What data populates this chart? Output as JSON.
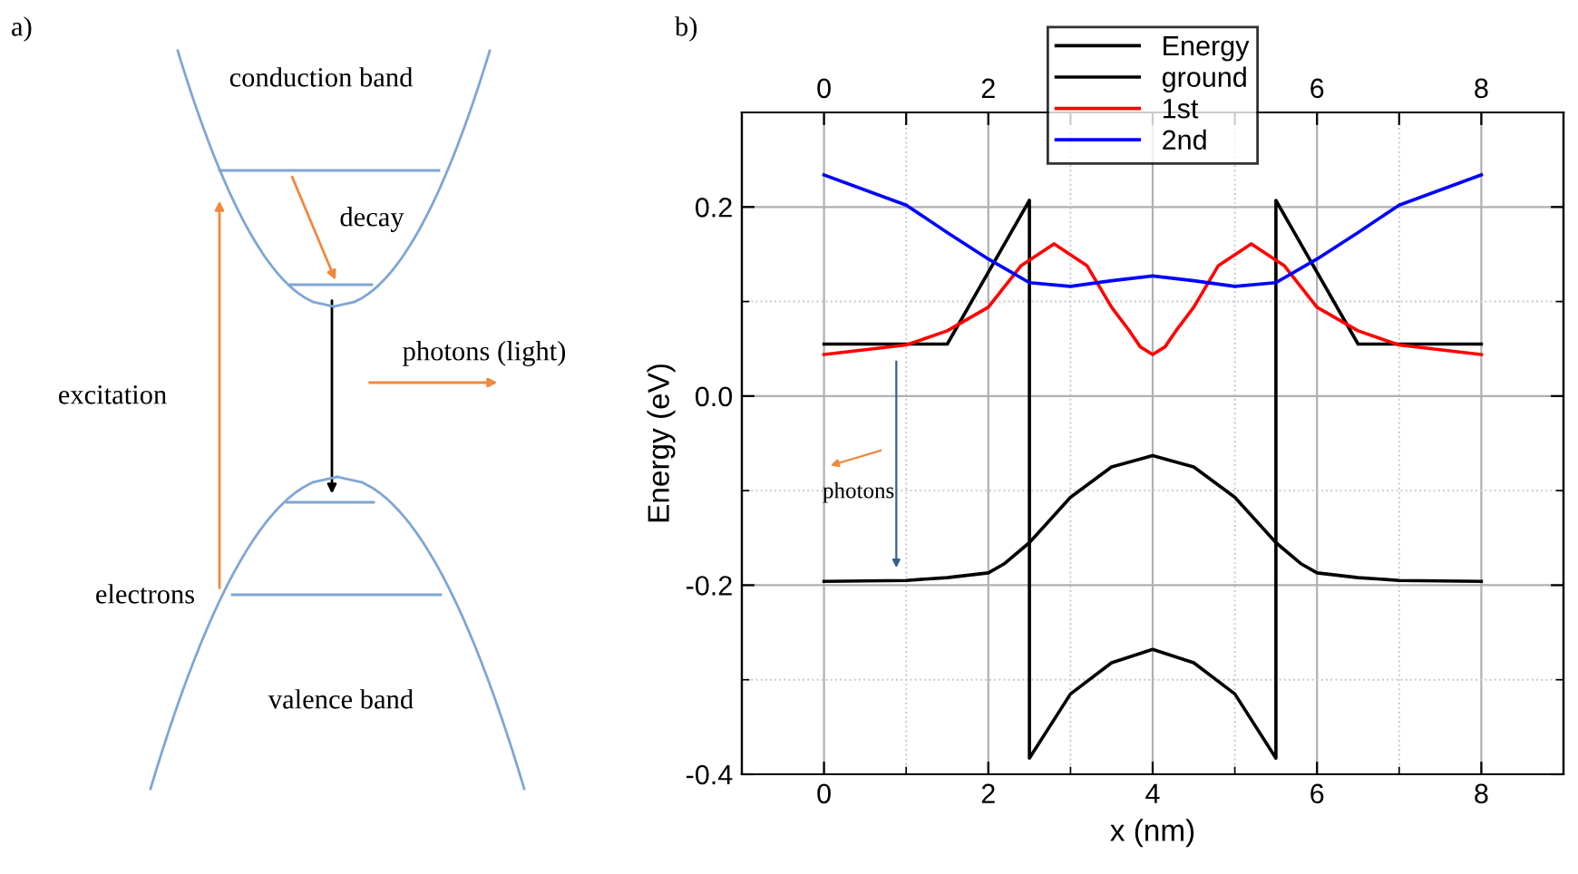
{
  "chart_data": [
    {
      "type": "other",
      "title": "a)",
      "annotations": [
        "conduction band",
        "decay",
        "photons (light)",
        "excitation",
        "electrons",
        "valence band"
      ]
    },
    {
      "type": "line",
      "title": "b)",
      "xlabel": "x (nm)",
      "ylabel": "Energy (eV)",
      "xlim": [
        -1,
        9
      ],
      "ylim": [
        -0.4,
        0.3
      ],
      "xticks": [
        0,
        {
          "value": 1,
          "label": null
        },
        2,
        {
          "value": 3,
          "label": null
        },
        4,
        {
          "value": 5,
          "label": null
        },
        6,
        {
          "value": 7,
          "label": null
        },
        8
      ],
      "yticks": [
        {
          "value": -0.4,
          "label": "-0.4"
        },
        {
          "value": -0.3,
          "label": null
        },
        {
          "value": -0.2,
          "label": "-0.2"
        },
        {
          "value": -0.1,
          "label": null
        },
        {
          "value": 0.0,
          "label": "0.0"
        },
        {
          "value": 0.1,
          "label": null
        },
        {
          "value": 0.2,
          "label": "0.2"
        }
      ],
      "x2lim": [
        -1,
        9
      ],
      "x2ticks": [
        0,
        {
          "value": 1,
          "label": null
        },
        2,
        {
          "value": 3,
          "label": null
        },
        {
          "value": 4,
          "label": null
        },
        {
          "value": 5,
          "label": null
        },
        6,
        {
          "value": 7,
          "label": null
        },
        8
      ],
      "grid": true,
      "legend": "top",
      "line_style": "solid",
      "marker": "none",
      "annotations": [
        "photons"
      ],
      "series": [
        {
          "name": "Energy",
          "color": "#000000",
          "x": [
            0,
            1.5,
            2.5,
            2.5,
            3,
            3.5,
            4,
            4.5,
            5,
            5.5,
            5.5,
            6.5,
            8
          ],
          "values": [
            0.055,
            0.055,
            0.207,
            -0.383,
            -0.315,
            -0.282,
            -0.268,
            -0.282,
            -0.315,
            -0.383,
            0.207,
            0.055,
            0.055
          ]
        },
        {
          "name": "ground",
          "color": "#000000",
          "x": [
            0,
            1,
            1.5,
            2,
            2.2,
            2.5,
            3,
            3.5,
            4,
            4.5,
            5,
            5.5,
            5.8,
            6,
            6.5,
            7,
            8
          ],
          "values": [
            -0.196,
            -0.195,
            -0.192,
            -0.187,
            -0.177,
            -0.155,
            -0.107,
            -0.075,
            -0.063,
            -0.075,
            -0.107,
            -0.155,
            -0.177,
            -0.187,
            -0.192,
            -0.195,
            -0.196
          ]
        },
        {
          "name": "1st",
          "color": "#ff0000",
          "x": [
            0,
            1,
            1.5,
            2,
            2.4,
            2.8,
            3.2,
            3.5,
            3.7,
            3.85,
            4,
            4.15,
            4.3,
            4.5,
            4.8,
            5.2,
            5.6,
            6,
            6.5,
            7,
            8
          ],
          "values": [
            0.044,
            0.054,
            0.069,
            0.094,
            0.138,
            0.161,
            0.138,
            0.094,
            0.071,
            0.052,
            0.044,
            0.052,
            0.071,
            0.094,
            0.138,
            0.161,
            0.138,
            0.094,
            0.069,
            0.054,
            0.044
          ]
        },
        {
          "name": "2nd",
          "color": "#0000ff",
          "x": [
            0,
            1,
            1.5,
            2,
            2.5,
            3,
            3.5,
            4,
            4.5,
            5,
            5.5,
            6,
            6.5,
            7,
            8
          ],
          "values": [
            0.234,
            0.202,
            0.173,
            0.145,
            0.12,
            0.116,
            0.122,
            0.127,
            0.122,
            0.116,
            0.12,
            0.145,
            0.173,
            0.202,
            0.234
          ]
        }
      ]
    }
  ]
}
